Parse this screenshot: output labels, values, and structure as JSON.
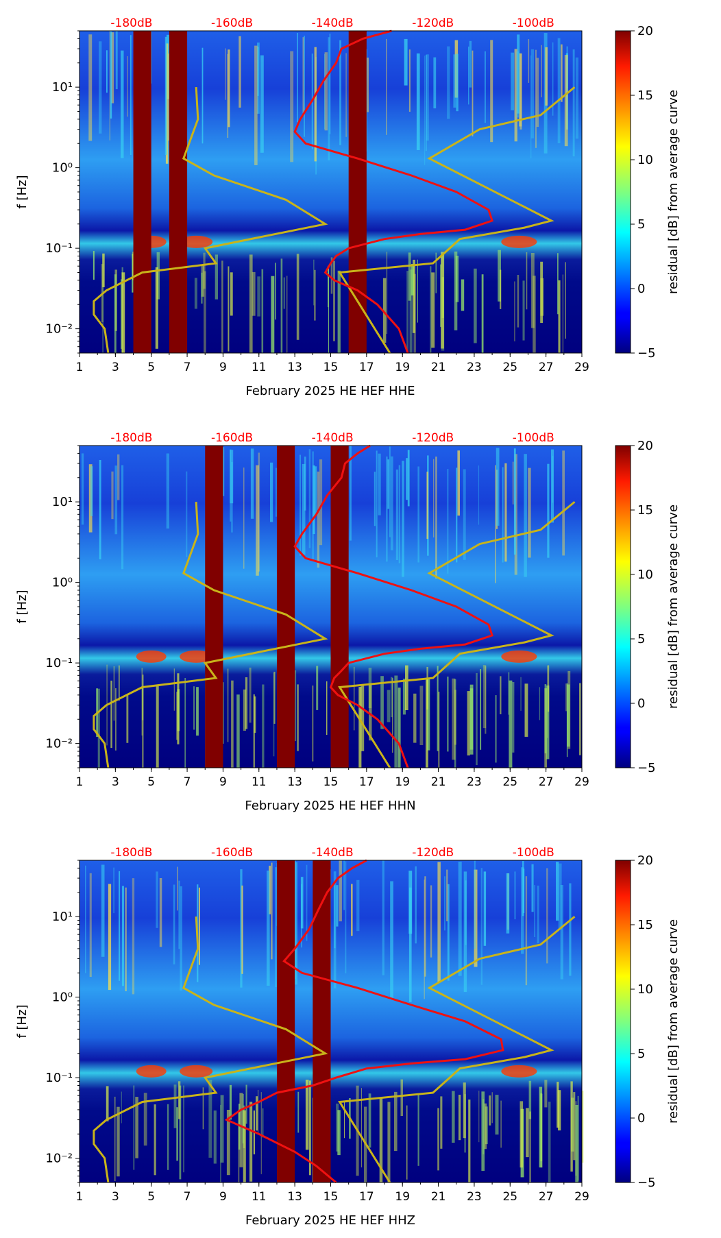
{
  "colors": {
    "db_labels": "#ff0000",
    "psd_curve": "#ee1111",
    "model_curve": "#c9b41a",
    "gap_band": "#800000",
    "axis": "#000000"
  },
  "colorbar": {
    "label": "residual [dB] from average curve",
    "range": [
      -5,
      20
    ],
    "ticks": [
      "20",
      "15",
      "10",
      "5",
      "0",
      "−5"
    ],
    "tick_values": [
      20,
      15,
      10,
      5,
      0,
      -5
    ],
    "colormap": "jet"
  },
  "chart_data": [
    {
      "type": "heatmap",
      "title": "",
      "xlabel": "February 2025 HE HEF  HHE",
      "ylabel": "f [Hz]",
      "x_ticks": [
        "1",
        "3",
        "5",
        "7",
        "9",
        "11",
        "13",
        "15",
        "17",
        "19",
        "21",
        "23",
        "25",
        "27",
        "29"
      ],
      "x_range": [
        1,
        29
      ],
      "y_ticks": [
        "10⁻²",
        "10⁻¹",
        "10⁰",
        "10¹"
      ],
      "y_tick_values": [
        0.01,
        0.1,
        1,
        10
      ],
      "y_range": [
        0.005,
        50
      ],
      "y_scale": "log",
      "top_axis_labels": [
        "-180dB",
        "-160dB",
        "-140dB",
        "-120dB",
        "-100dB"
      ],
      "top_axis_positions_day": [
        3.9,
        9.5,
        15.1,
        20.7,
        26.3
      ],
      "data_gaps_days": [
        [
          4,
          5
        ],
        [
          6,
          7
        ],
        [
          16,
          17
        ]
      ],
      "psd_curve": [
        {
          "f": 50,
          "day": 18.4
        },
        {
          "f": 40,
          "day": 16.8
        },
        {
          "f": 30,
          "day": 15.6
        },
        {
          "f": 20,
          "day": 15.3
        },
        {
          "f": 12,
          "day": 14.6
        },
        {
          "f": 7,
          "day": 14.0
        },
        {
          "f": 4,
          "day": 13.3
        },
        {
          "f": 2.8,
          "day": 13.0
        },
        {
          "f": 2,
          "day": 13.6
        },
        {
          "f": 1.3,
          "day": 16.5
        },
        {
          "f": 0.8,
          "day": 19.5
        },
        {
          "f": 0.5,
          "day": 22.0
        },
        {
          "f": 0.3,
          "day": 23.8
        },
        {
          "f": 0.22,
          "day": 24.0
        },
        {
          "f": 0.17,
          "day": 22.5
        },
        {
          "f": 0.15,
          "day": 20.0
        },
        {
          "f": 0.13,
          "day": 18.0
        },
        {
          "f": 0.1,
          "day": 16.0
        },
        {
          "f": 0.08,
          "day": 15.3
        },
        {
          "f": 0.065,
          "day": 15.0
        },
        {
          "f": 0.05,
          "day": 14.7
        },
        {
          "f": 0.04,
          "day": 15.2
        },
        {
          "f": 0.03,
          "day": 16.5
        },
        {
          "f": 0.02,
          "day": 17.6
        },
        {
          "f": 0.01,
          "day": 18.8
        },
        {
          "f": 0.005,
          "day": 19.3
        }
      ],
      "model_curve": [
        {
          "f": 10,
          "day": 7.5
        },
        {
          "f": 4,
          "day": 7.6
        },
        {
          "f": 1.3,
          "day": 6.8
        },
        {
          "f": 0.8,
          "day": 8.5
        },
        {
          "f": 0.4,
          "day": 12.5
        },
        {
          "f": 0.2,
          "day": 14.7
        },
        {
          "f": 0.1,
          "day": 8.0
        },
        {
          "f": 0.065,
          "day": 8.6
        },
        {
          "f": 0.05,
          "day": 4.5
        },
        {
          "f": 0.03,
          "day": 2.5
        },
        {
          "f": 0.022,
          "day": 1.8
        },
        {
          "f": 0.015,
          "day": 1.8
        },
        {
          "f": 0.01,
          "day": 2.4
        },
        {
          "f": 0.005,
          "day": 2.6
        }
      ],
      "model_curve_high": [
        {
          "f": 0.005,
          "day": 18.3
        },
        {
          "f": 0.05,
          "day": 15.5
        },
        {
          "f": 0.065,
          "day": 20.7
        },
        {
          "f": 0.13,
          "day": 22.2
        },
        {
          "f": 0.18,
          "day": 25.8
        },
        {
          "f": 0.22,
          "day": 27.3
        },
        {
          "f": 1.3,
          "day": 20.5
        },
        {
          "f": 3,
          "day": 23.3
        },
        {
          "f": 4.5,
          "day": 26.7
        },
        {
          "f": 10,
          "day": 28.6
        }
      ]
    },
    {
      "type": "heatmap",
      "title": "",
      "xlabel": "February 2025 HE HEF  HHN",
      "ylabel": "f [Hz]",
      "x_ticks": [
        "1",
        "3",
        "5",
        "7",
        "9",
        "11",
        "13",
        "15",
        "17",
        "19",
        "21",
        "23",
        "25",
        "27",
        "29"
      ],
      "x_range": [
        1,
        29
      ],
      "y_ticks": [
        "10⁻²",
        "10⁻¹",
        "10⁰",
        "10¹"
      ],
      "y_tick_values": [
        0.01,
        0.1,
        1,
        10
      ],
      "y_range": [
        0.005,
        50
      ],
      "y_scale": "log",
      "top_axis_labels": [
        "-180dB",
        "-160dB",
        "-140dB",
        "-120dB",
        "-100dB"
      ],
      "top_axis_positions_day": [
        3.9,
        9.5,
        15.1,
        20.7,
        26.3
      ],
      "data_gaps_days": [
        [
          8,
          9
        ],
        [
          12,
          13
        ],
        [
          15,
          16
        ]
      ],
      "psd_curve": [
        {
          "f": 50,
          "day": 17.2
        },
        {
          "f": 40,
          "day": 16.5
        },
        {
          "f": 30,
          "day": 15.8
        },
        {
          "f": 20,
          "day": 15.6
        },
        {
          "f": 12,
          "day": 14.8
        },
        {
          "f": 7,
          "day": 14.2
        },
        {
          "f": 4,
          "day": 13.4
        },
        {
          "f": 2.8,
          "day": 13.0
        },
        {
          "f": 2,
          "day": 13.6
        },
        {
          "f": 1.3,
          "day": 16.5
        },
        {
          "f": 0.8,
          "day": 19.5
        },
        {
          "f": 0.5,
          "day": 22.0
        },
        {
          "f": 0.3,
          "day": 23.8
        },
        {
          "f": 0.22,
          "day": 24.0
        },
        {
          "f": 0.17,
          "day": 22.5
        },
        {
          "f": 0.15,
          "day": 20.0
        },
        {
          "f": 0.13,
          "day": 18.0
        },
        {
          "f": 0.1,
          "day": 16.0
        },
        {
          "f": 0.08,
          "day": 15.6
        },
        {
          "f": 0.065,
          "day": 15.2
        },
        {
          "f": 0.05,
          "day": 15.0
        },
        {
          "f": 0.04,
          "day": 15.4
        },
        {
          "f": 0.03,
          "day": 16.5
        },
        {
          "f": 0.02,
          "day": 17.6
        },
        {
          "f": 0.01,
          "day": 18.8
        },
        {
          "f": 0.005,
          "day": 19.3
        }
      ],
      "model_curve": [
        {
          "f": 10,
          "day": 7.5
        },
        {
          "f": 4,
          "day": 7.6
        },
        {
          "f": 1.3,
          "day": 6.8
        },
        {
          "f": 0.8,
          "day": 8.5
        },
        {
          "f": 0.4,
          "day": 12.5
        },
        {
          "f": 0.2,
          "day": 14.7
        },
        {
          "f": 0.1,
          "day": 8.0
        },
        {
          "f": 0.065,
          "day": 8.6
        },
        {
          "f": 0.05,
          "day": 4.5
        },
        {
          "f": 0.03,
          "day": 2.5
        },
        {
          "f": 0.022,
          "day": 1.8
        },
        {
          "f": 0.015,
          "day": 1.8
        },
        {
          "f": 0.01,
          "day": 2.4
        },
        {
          "f": 0.005,
          "day": 2.6
        }
      ],
      "model_curve_high": [
        {
          "f": 0.005,
          "day": 18.3
        },
        {
          "f": 0.05,
          "day": 15.5
        },
        {
          "f": 0.065,
          "day": 20.7
        },
        {
          "f": 0.13,
          "day": 22.2
        },
        {
          "f": 0.18,
          "day": 25.8
        },
        {
          "f": 0.22,
          "day": 27.3
        },
        {
          "f": 1.3,
          "day": 20.5
        },
        {
          "f": 3,
          "day": 23.3
        },
        {
          "f": 4.5,
          "day": 26.7
        },
        {
          "f": 10,
          "day": 28.6
        }
      ]
    },
    {
      "type": "heatmap",
      "title": "",
      "xlabel": "February 2025 HE HEF  HHZ",
      "ylabel": "f [Hz]",
      "x_ticks": [
        "1",
        "3",
        "5",
        "7",
        "9",
        "11",
        "13",
        "15",
        "17",
        "19",
        "21",
        "23",
        "25",
        "27",
        "29"
      ],
      "x_range": [
        1,
        29
      ],
      "y_ticks": [
        "10⁻²",
        "10⁻¹",
        "10⁰",
        "10¹"
      ],
      "y_tick_values": [
        0.01,
        0.1,
        1,
        10
      ],
      "y_range": [
        0.005,
        50
      ],
      "y_scale": "log",
      "top_axis_labels": [
        "-180dB",
        "-160dB",
        "-140dB",
        "-120dB",
        "-100dB"
      ],
      "top_axis_positions_day": [
        3.9,
        9.5,
        15.1,
        20.7,
        26.3
      ],
      "data_gaps_days": [
        [
          12,
          13
        ],
        [
          14,
          15
        ]
      ],
      "psd_curve": [
        {
          "f": 50,
          "day": 17.0
        },
        {
          "f": 40,
          "day": 16.2
        },
        {
          "f": 30,
          "day": 15.4
        },
        {
          "f": 20,
          "day": 14.8
        },
        {
          "f": 12,
          "day": 14.3
        },
        {
          "f": 7,
          "day": 13.8
        },
        {
          "f": 4,
          "day": 13.0
        },
        {
          "f": 2.8,
          "day": 12.4
        },
        {
          "f": 2,
          "day": 13.4
        },
        {
          "f": 1.3,
          "day": 16.5
        },
        {
          "f": 0.8,
          "day": 19.5
        },
        {
          "f": 0.5,
          "day": 22.5
        },
        {
          "f": 0.3,
          "day": 24.5
        },
        {
          "f": 0.22,
          "day": 24.6
        },
        {
          "f": 0.17,
          "day": 22.5
        },
        {
          "f": 0.15,
          "day": 19.5
        },
        {
          "f": 0.13,
          "day": 17.0
        },
        {
          "f": 0.1,
          "day": 15.3
        },
        {
          "f": 0.08,
          "day": 14.0
        },
        {
          "f": 0.065,
          "day": 12.0
        },
        {
          "f": 0.05,
          "day": 11.0
        },
        {
          "f": 0.04,
          "day": 10.0
        },
        {
          "f": 0.03,
          "day": 9.2
        },
        {
          "f": 0.02,
          "day": 11.0
        },
        {
          "f": 0.012,
          "day": 13.0
        },
        {
          "f": 0.008,
          "day": 14.2
        },
        {
          "f": 0.005,
          "day": 15.3
        }
      ],
      "model_curve": [
        {
          "f": 10,
          "day": 7.5
        },
        {
          "f": 4,
          "day": 7.6
        },
        {
          "f": 1.3,
          "day": 6.8
        },
        {
          "f": 0.8,
          "day": 8.5
        },
        {
          "f": 0.4,
          "day": 12.5
        },
        {
          "f": 0.2,
          "day": 14.7
        },
        {
          "f": 0.1,
          "day": 8.0
        },
        {
          "f": 0.065,
          "day": 8.6
        },
        {
          "f": 0.05,
          "day": 4.5
        },
        {
          "f": 0.03,
          "day": 2.5
        },
        {
          "f": 0.022,
          "day": 1.8
        },
        {
          "f": 0.015,
          "day": 1.8
        },
        {
          "f": 0.01,
          "day": 2.4
        },
        {
          "f": 0.005,
          "day": 2.6
        }
      ],
      "model_curve_high": [
        {
          "f": 0.005,
          "day": 18.3
        },
        {
          "f": 0.05,
          "day": 15.5
        },
        {
          "f": 0.065,
          "day": 20.7
        },
        {
          "f": 0.13,
          "day": 22.2
        },
        {
          "f": 0.18,
          "day": 25.8
        },
        {
          "f": 0.22,
          "day": 27.3
        },
        {
          "f": 1.3,
          "day": 20.5
        },
        {
          "f": 3,
          "day": 23.3
        },
        {
          "f": 4.5,
          "day": 26.7
        },
        {
          "f": 10,
          "day": 28.6
        }
      ]
    }
  ]
}
